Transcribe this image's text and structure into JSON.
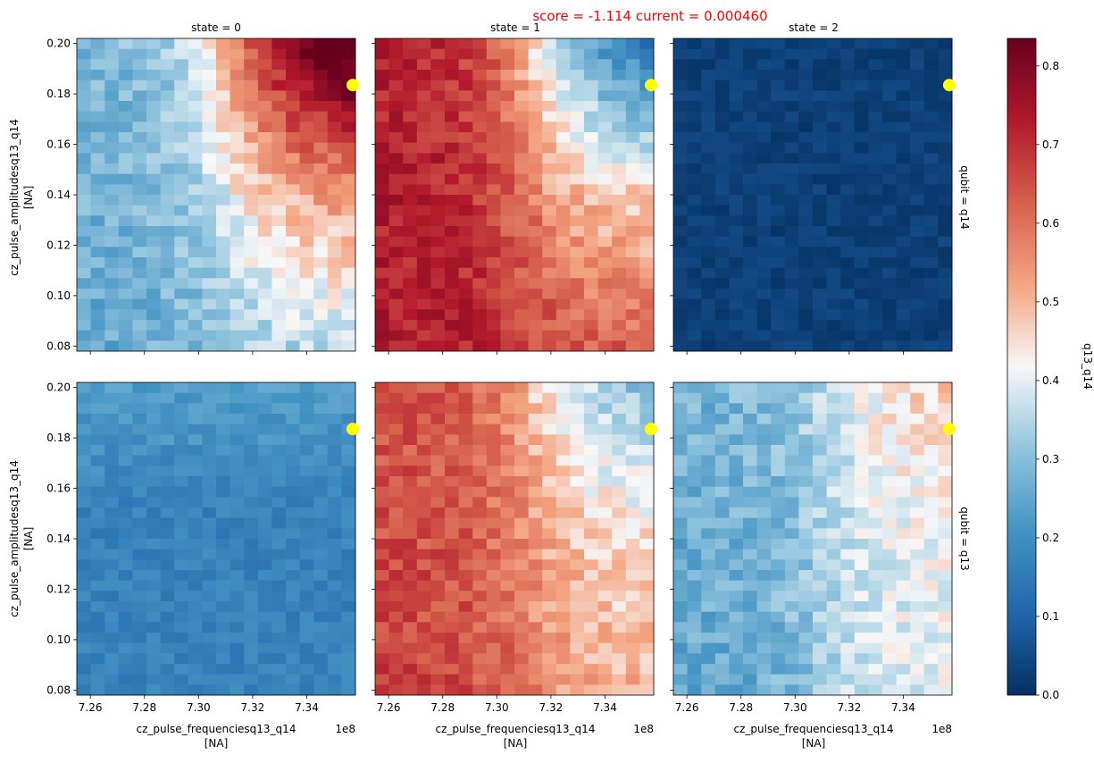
{
  "chart_data": {
    "type": "heatmap",
    "suptitle": "score = -1.114   current = 0.000460",
    "col_titles": [
      "state = 0",
      "state = 1",
      "state = 2"
    ],
    "row_titles": [
      "qubit = q14",
      "qubit = q13"
    ],
    "xlabel_line1": "cz_pulse_frequenciesq13_q14",
    "xlabel_line2": "[NA]",
    "x_offset_label": "1e8",
    "ylabel_line1": "cz_pulse_amplitudesq13_q14",
    "ylabel_line2": "[NA]",
    "x_range": [
      7.255,
      7.358
    ],
    "y_range": [
      0.078,
      0.202
    ],
    "x_ticks": [
      7.26,
      7.28,
      7.3,
      7.32,
      7.34
    ],
    "x_tick_labels": [
      "7.26",
      "7.28",
      "7.30",
      "7.32",
      "7.34"
    ],
    "y_ticks": [
      0.08,
      0.1,
      0.12,
      0.14,
      0.16,
      0.18,
      0.2
    ],
    "y_tick_labels": [
      "0.08",
      "0.10",
      "0.12",
      "0.14",
      "0.16",
      "0.18",
      "0.20"
    ],
    "grid_shape": {
      "rows": 30,
      "cols": 20
    },
    "colorbar": {
      "label": "q13_q14",
      "cmap": "RdBu_r",
      "range": [
        0.0,
        0.835
      ],
      "ticks": [
        0.0,
        0.1,
        0.2,
        0.3,
        0.4,
        0.5,
        0.6,
        0.7,
        0.8
      ],
      "tick_labels": [
        "0.0",
        "0.1",
        "0.2",
        "0.3",
        "0.4",
        "0.5",
        "0.6",
        "0.7",
        "0.8"
      ]
    },
    "marker": {
      "x": 7.357,
      "y": 0.1835,
      "color": "#ffff00"
    },
    "panels": [
      {
        "qubit": "q14",
        "state": 0,
        "pattern": {
          "type": "horizontal",
          "left": 0.28,
          "right": 0.72,
          "left_bottom": 0.26,
          "right_bottom": 0.36,
          "top_boost": 0.18,
          "noise": 0.05
        }
      },
      {
        "qubit": "q14",
        "state": 1,
        "pattern": {
          "type": "horizontal",
          "left": 0.72,
          "right": 0.3,
          "left_bottom": 0.73,
          "right_bottom": 0.62,
          "top_boost": -0.15,
          "noise": 0.05
        }
      },
      {
        "qubit": "q14",
        "state": 2,
        "pattern": {
          "type": "flat",
          "value": 0.03,
          "noise": 0.02
        }
      },
      {
        "qubit": "q13",
        "state": 0,
        "pattern": {
          "type": "flat",
          "value": 0.17,
          "noise": 0.03,
          "top_boost": 0.06
        }
      },
      {
        "qubit": "q13",
        "state": 1,
        "pattern": {
          "type": "horizontal",
          "left": 0.64,
          "right": 0.4,
          "left_bottom": 0.67,
          "right_bottom": 0.5,
          "top_boost": -0.1,
          "noise": 0.05
        }
      },
      {
        "qubit": "q13",
        "state": 2,
        "pattern": {
          "type": "horizontal",
          "left": 0.28,
          "right": 0.42,
          "left_bottom": 0.25,
          "right_bottom": 0.4,
          "top_boost": 0.05,
          "noise": 0.05
        }
      }
    ]
  }
}
